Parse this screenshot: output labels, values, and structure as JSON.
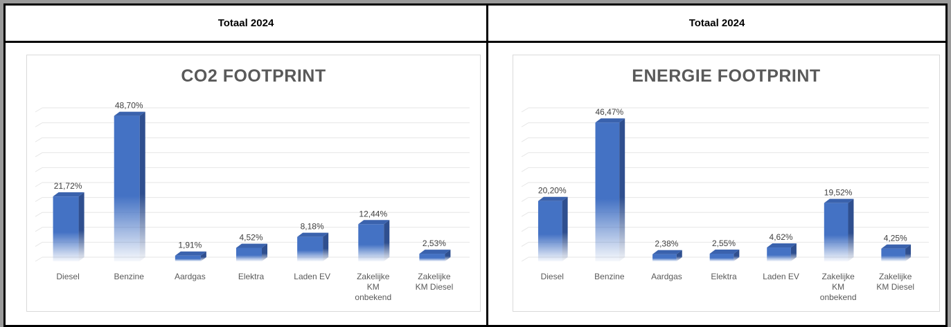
{
  "panels": [
    {
      "header": "Totaal 2024",
      "chart_title": "CO2 FOOTPRINT"
    },
    {
      "header": "Totaal 2024",
      "chart_title": "ENERGIE FOOTPRINT"
    }
  ],
  "colors": {
    "bar_front": "#4472c4",
    "bar_side": "#2f4f8f",
    "bar_top": "#3a62ad",
    "grid": "#e6e6e6"
  },
  "chart_data": [
    {
      "type": "bar",
      "title": "CO2 FOOTPRINT",
      "categories": [
        "Diesel",
        "Benzine",
        "Aardgas",
        "Elektra",
        "Laden EV",
        "Zakelijke KM onbekend",
        "Zakelijke KM Diesel"
      ],
      "category_lines": [
        [
          "Diesel"
        ],
        [
          "Benzine"
        ],
        [
          "Aardgas"
        ],
        [
          "Elektra"
        ],
        [
          "Laden EV"
        ],
        [
          "Zakelijke",
          "KM",
          "onbekend"
        ],
        [
          "Zakelijke",
          "KM Diesel"
        ]
      ],
      "values": [
        21.72,
        48.7,
        1.91,
        4.52,
        8.18,
        12.44,
        2.53
      ],
      "data_labels": [
        "21,72%",
        "48,70%",
        "1,91%",
        "4,52%",
        "8,18%",
        "12,44%",
        "2,53%"
      ],
      "ylim": [
        0,
        50
      ],
      "grid": true,
      "legend": "none",
      "style": "3d-column-gradient"
    },
    {
      "type": "bar",
      "title": "ENERGIE FOOTPRINT",
      "categories": [
        "Diesel",
        "Benzine",
        "Aardgas",
        "Elektra",
        "Laden EV",
        "Zakelijke KM onbekend",
        "Zakelijke KM Diesel"
      ],
      "category_lines": [
        [
          "Diesel"
        ],
        [
          "Benzine"
        ],
        [
          "Aardgas"
        ],
        [
          "Elektra"
        ],
        [
          "Laden EV"
        ],
        [
          "Zakelijke",
          "KM",
          "onbekend"
        ],
        [
          "Zakelijke",
          "KM Diesel"
        ]
      ],
      "values": [
        20.2,
        46.47,
        2.38,
        2.55,
        4.62,
        19.52,
        4.25
      ],
      "data_labels": [
        "20,20%",
        "46,47%",
        "2,38%",
        "2,55%",
        "4,62%",
        "19,52%",
        "4,25%"
      ],
      "ylim": [
        0,
        50
      ],
      "grid": true,
      "legend": "none",
      "style": "3d-column-gradient"
    }
  ]
}
